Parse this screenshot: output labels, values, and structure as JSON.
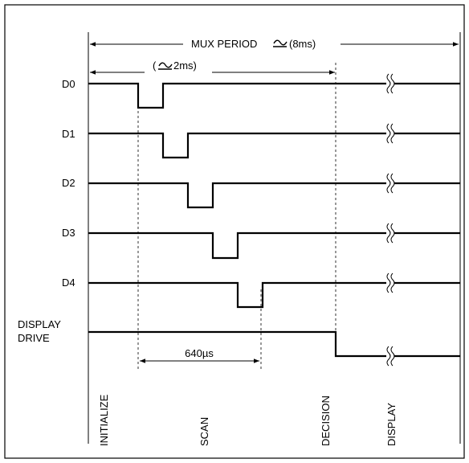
{
  "diagram": {
    "mux_period_label": "MUX PERIOD",
    "mux_period_value": "(8ms)",
    "scan_window_label": "(",
    "scan_window_value": "2ms)",
    "scan_duration_label": "640µs",
    "signals": [
      {
        "name": "D0"
      },
      {
        "name": "D1"
      },
      {
        "name": "D2"
      },
      {
        "name": "D3"
      },
      {
        "name": "D4"
      }
    ],
    "display_drive_line1": "DISPLAY",
    "display_drive_line2": "DRIVE",
    "phases": {
      "initialize": "INITIALIZE",
      "scan": "SCAN",
      "decision": "DECISION",
      "display": "DISPLAY"
    }
  }
}
